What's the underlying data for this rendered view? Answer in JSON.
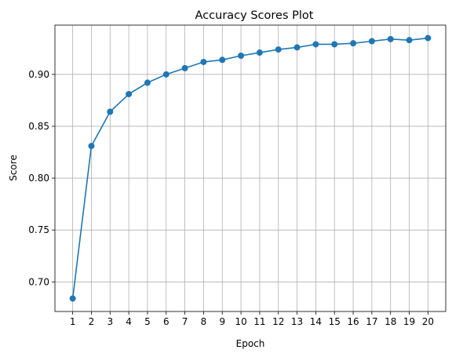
{
  "chart_data": {
    "type": "line",
    "title": "Accuracy Scores Plot",
    "xlabel": "Epoch",
    "ylabel": "Score",
    "x": [
      1,
      2,
      3,
      4,
      5,
      6,
      7,
      8,
      9,
      10,
      11,
      12,
      13,
      14,
      15,
      16,
      17,
      18,
      19,
      20
    ],
    "series": [
      {
        "values": [
          0.684,
          0.831,
          0.864,
          0.881,
          0.892,
          0.9,
          0.906,
          0.912,
          0.914,
          0.918,
          0.921,
          0.924,
          0.926,
          0.929,
          0.929,
          0.93,
          0.932,
          0.934,
          0.933,
          0.935
        ],
        "color": "#1f77b4",
        "marker": "circle"
      }
    ],
    "x_ticks": [
      "1",
      "2",
      "3",
      "4",
      "5",
      "6",
      "7",
      "8",
      "9",
      "10",
      "11",
      "12",
      "13",
      "14",
      "15",
      "16",
      "17",
      "18",
      "19",
      "20"
    ],
    "y_ticks": [
      0.7,
      0.75,
      0.8,
      0.85,
      0.9
    ],
    "y_tick_labels": [
      "0.70",
      "0.75",
      "0.80",
      "0.85",
      "0.90"
    ],
    "xlim": [
      0.05,
      20.95
    ],
    "ylim": [
      0.6715,
      0.9475
    ],
    "grid": true
  }
}
